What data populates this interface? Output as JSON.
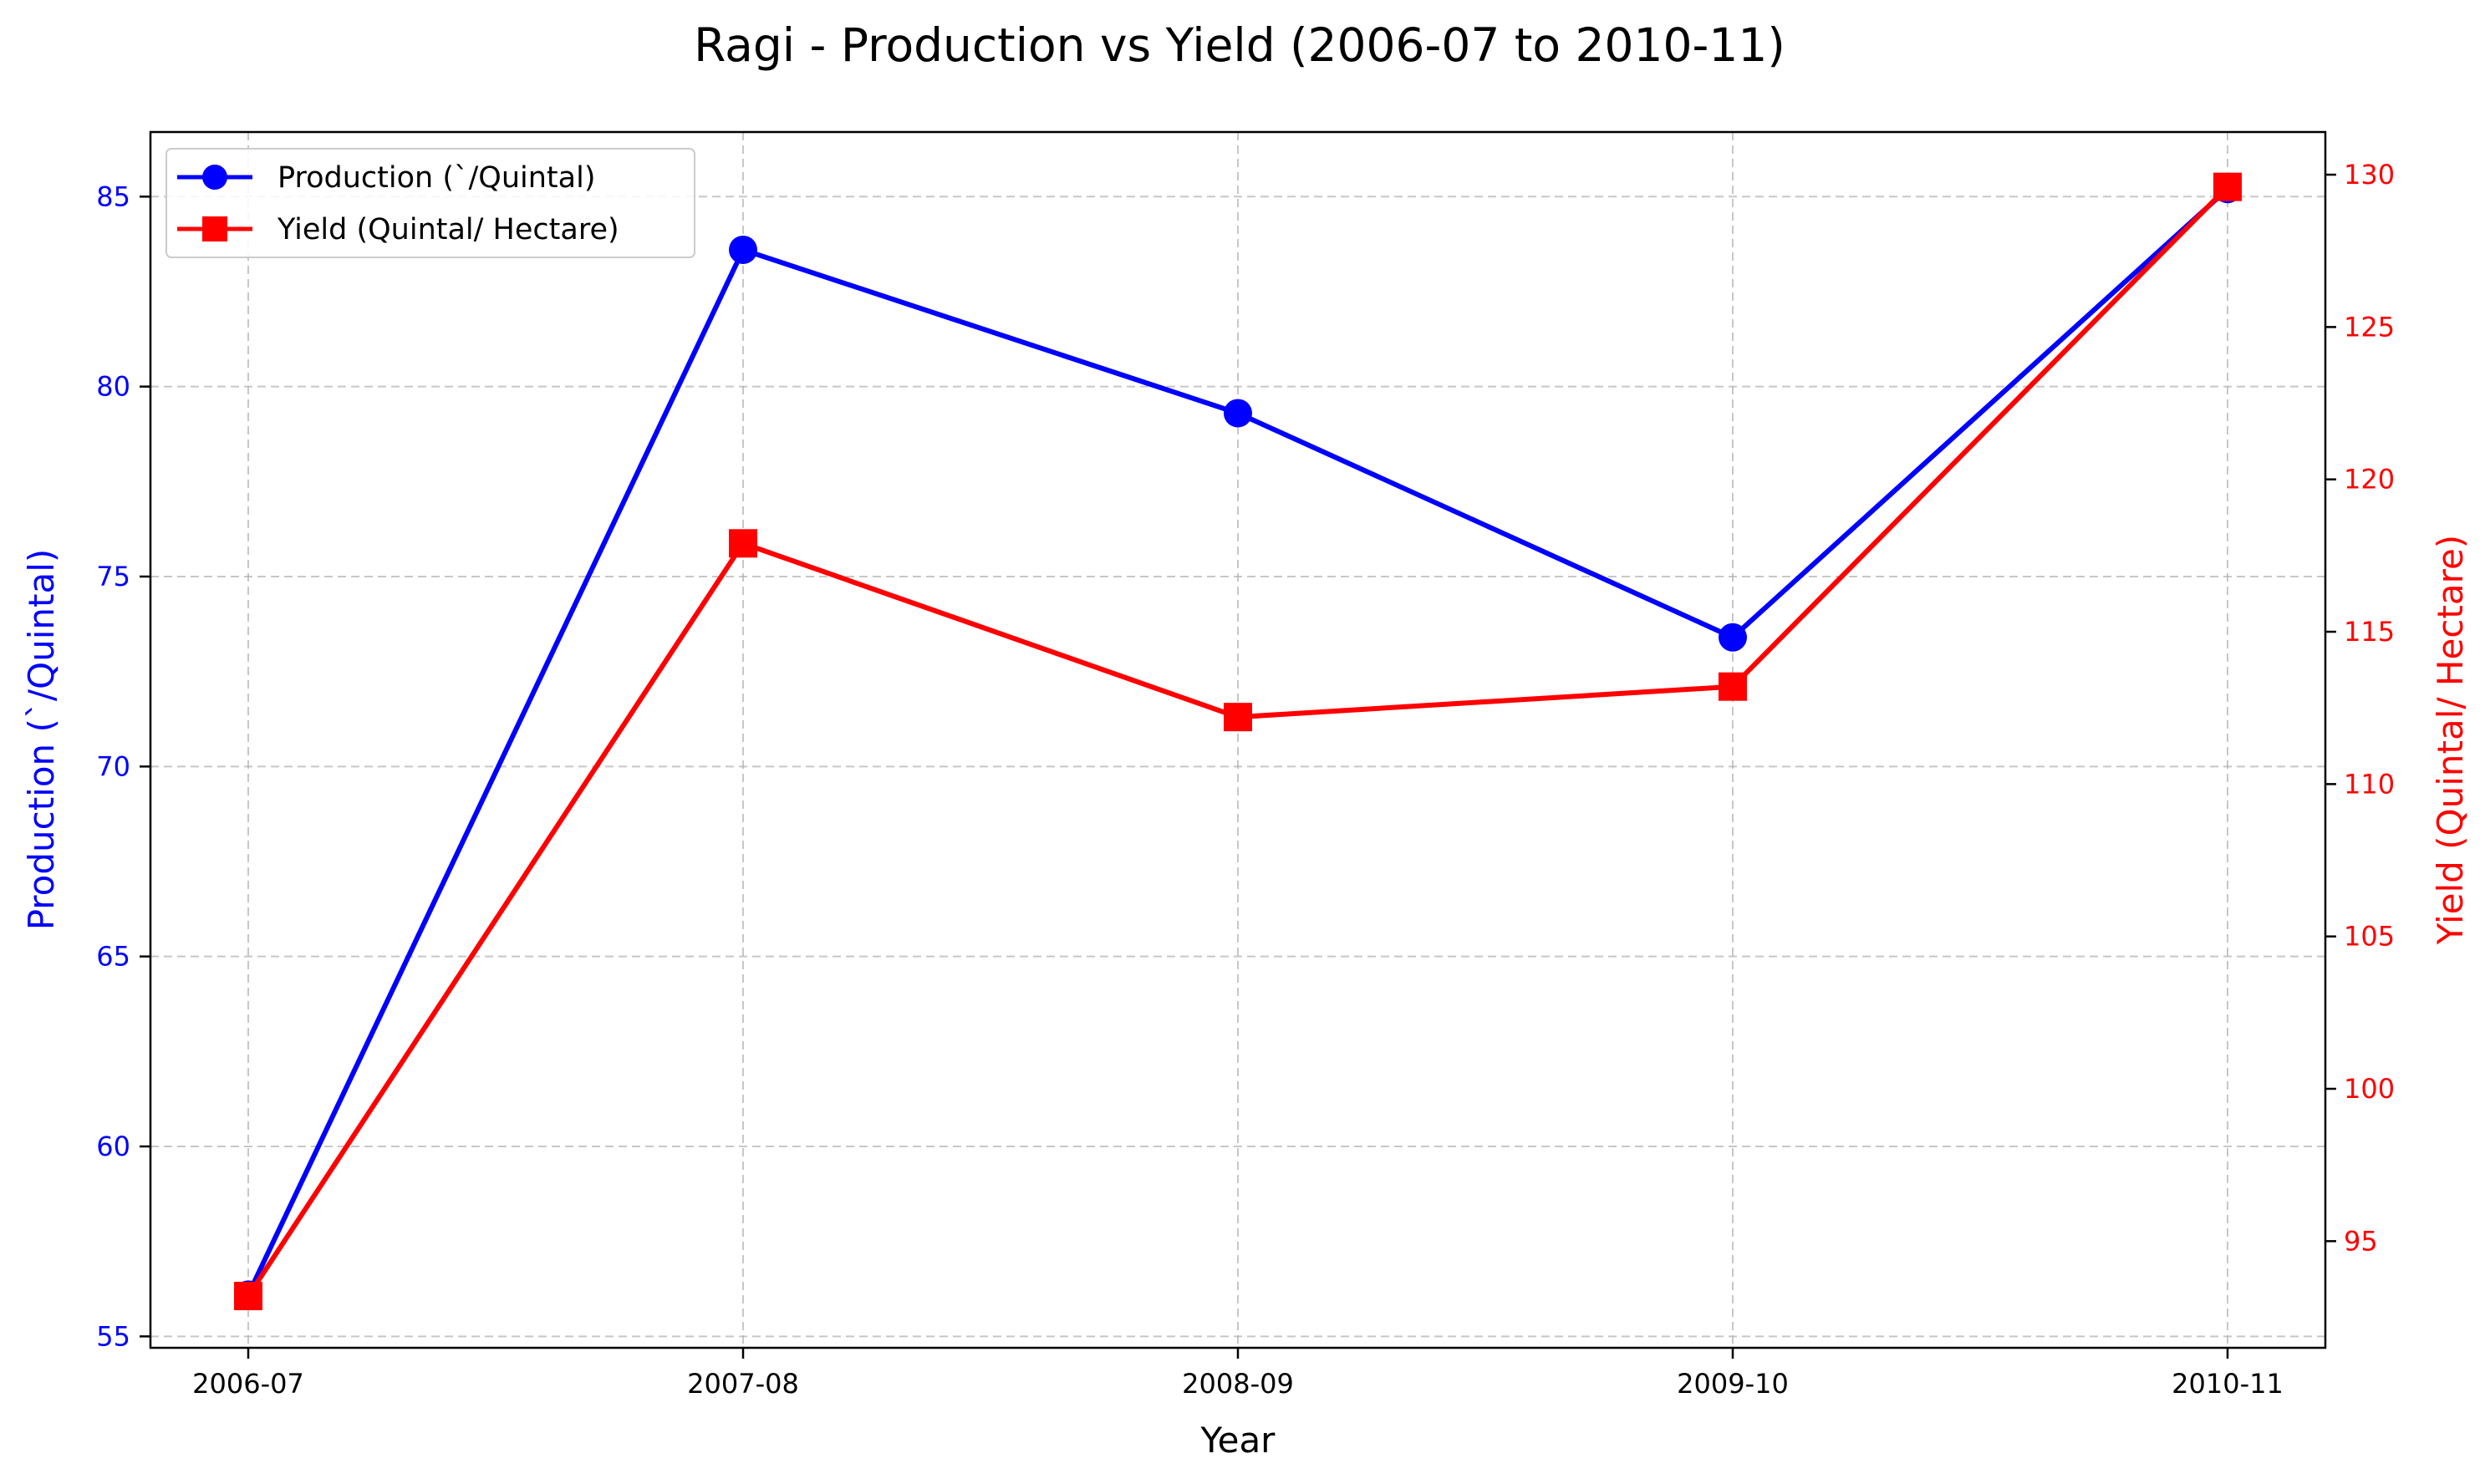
{
  "chart_data": {
    "type": "line",
    "title": "Ragi - Production vs Yield (2006-07 to 2010-11)",
    "xlabel": "Year",
    "ylabel_left": "Production (`/Quintal)",
    "ylabel_right": "Yield (Quintal/ Hectare)",
    "categories": [
      "2006-07",
      "2007-08",
      "2008-09",
      "2009-10",
      "2010-11"
    ],
    "y_left": {
      "range": [
        54.7,
        86.7
      ],
      "ticks": [
        55,
        60,
        65,
        70,
        75,
        80,
        85
      ],
      "color": "#0000ff"
    },
    "y_right": {
      "range": [
        91.5,
        131.4
      ],
      "ticks": [
        95,
        100,
        105,
        110,
        115,
        120,
        125,
        130
      ],
      "color": "#ff0000"
    },
    "grid": true,
    "legend_position": "top-left",
    "series": [
      {
        "name": "Production (`/Quintal)",
        "axis": "left",
        "marker": "circle",
        "color": "#0000ff",
        "values": [
          56.1,
          83.6,
          79.3,
          73.4,
          85.2
        ]
      },
      {
        "name": "Yield (Quintal/ Hectare)",
        "axis": "right",
        "marker": "square",
        "color": "#ff0000",
        "values": [
          93.2,
          117.9,
          112.2,
          113.2,
          129.6
        ]
      }
    ]
  }
}
